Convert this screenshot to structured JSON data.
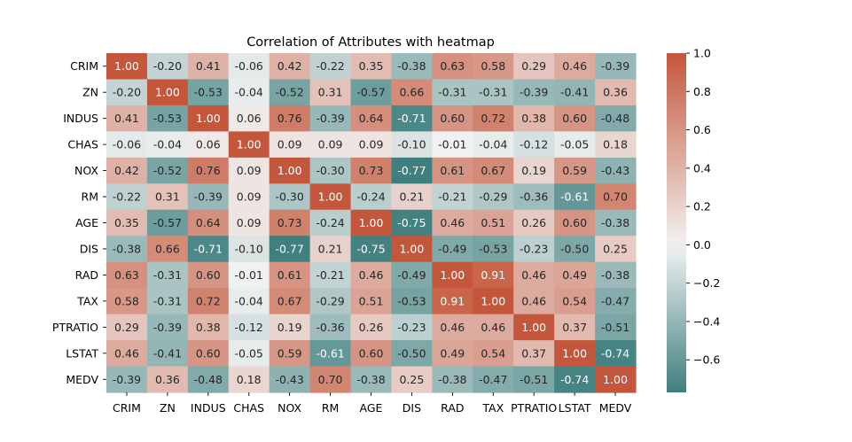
{
  "chart_data": {
    "type": "heatmap",
    "title": "Correlation of Attributes with heatmap",
    "xlabel": "",
    "ylabel": "",
    "labels": [
      "CRIM",
      "ZN",
      "INDUS",
      "CHAS",
      "NOX",
      "RM",
      "AGE",
      "DIS",
      "RAD",
      "TAX",
      "PTRATIO",
      "LSTAT",
      "MEDV"
    ],
    "values": [
      [
        1.0,
        -0.2,
        0.41,
        -0.06,
        0.42,
        -0.22,
        0.35,
        -0.38,
        0.63,
        0.58,
        0.29,
        0.46,
        -0.39
      ],
      [
        -0.2,
        1.0,
        -0.53,
        -0.04,
        -0.52,
        0.31,
        -0.57,
        0.66,
        -0.31,
        -0.31,
        -0.39,
        -0.41,
        0.36
      ],
      [
        0.41,
        -0.53,
        1.0,
        0.06,
        0.76,
        -0.39,
        0.64,
        -0.71,
        0.6,
        0.72,
        0.38,
        0.6,
        -0.48
      ],
      [
        -0.06,
        -0.04,
        0.06,
        1.0,
        0.09,
        0.09,
        0.09,
        -0.1,
        -0.01,
        -0.04,
        -0.12,
        -0.05,
        0.18
      ],
      [
        0.42,
        -0.52,
        0.76,
        0.09,
        1.0,
        -0.3,
        0.73,
        -0.77,
        0.61,
        0.67,
        0.19,
        0.59,
        -0.43
      ],
      [
        -0.22,
        0.31,
        -0.39,
        0.09,
        -0.3,
        1.0,
        -0.24,
        0.21,
        -0.21,
        -0.29,
        -0.36,
        -0.61,
        0.7
      ],
      [
        0.35,
        -0.57,
        0.64,
        0.09,
        0.73,
        -0.24,
        1.0,
        -0.75,
        0.46,
        0.51,
        0.26,
        0.6,
        -0.38
      ],
      [
        -0.38,
        0.66,
        -0.71,
        -0.1,
        -0.77,
        0.21,
        -0.75,
        1.0,
        -0.49,
        -0.53,
        -0.23,
        -0.5,
        0.25
      ],
      [
        0.63,
        -0.31,
        0.6,
        -0.01,
        0.61,
        -0.21,
        0.46,
        -0.49,
        1.0,
        0.91,
        0.46,
        0.49,
        -0.38
      ],
      [
        0.58,
        -0.31,
        0.72,
        -0.04,
        0.67,
        -0.29,
        0.51,
        -0.53,
        0.91,
        1.0,
        0.46,
        0.54,
        -0.47
      ],
      [
        0.29,
        -0.39,
        0.38,
        -0.12,
        0.19,
        -0.36,
        0.26,
        -0.23,
        0.46,
        0.46,
        1.0,
        0.37,
        -0.51
      ],
      [
        0.46,
        -0.41,
        0.6,
        -0.05,
        0.59,
        -0.61,
        0.6,
        -0.5,
        0.49,
        0.54,
        0.37,
        1.0,
        -0.74
      ],
      [
        -0.39,
        0.36,
        -0.48,
        0.18,
        -0.43,
        0.7,
        -0.38,
        0.25,
        -0.38,
        -0.47,
        -0.51,
        -0.74,
        1.0
      ]
    ],
    "colorbar": {
      "range": [
        -0.77,
        1.0
      ],
      "ticks": [
        -0.6,
        -0.4,
        -0.2,
        0.0,
        0.2,
        0.4,
        0.6,
        0.8,
        1.0
      ],
      "tick_labels": [
        "−0.6",
        "−0.4",
        "−0.2",
        "0.0",
        "0.2",
        "0.4",
        "0.6",
        "0.8",
        "1.0"
      ]
    },
    "colors": {
      "low": "#3f7f7f",
      "mid": "#f2f2f2",
      "high": "#c4573b"
    },
    "annotation_format": "0.00",
    "grid": false,
    "legend": "colorbar-right"
  }
}
